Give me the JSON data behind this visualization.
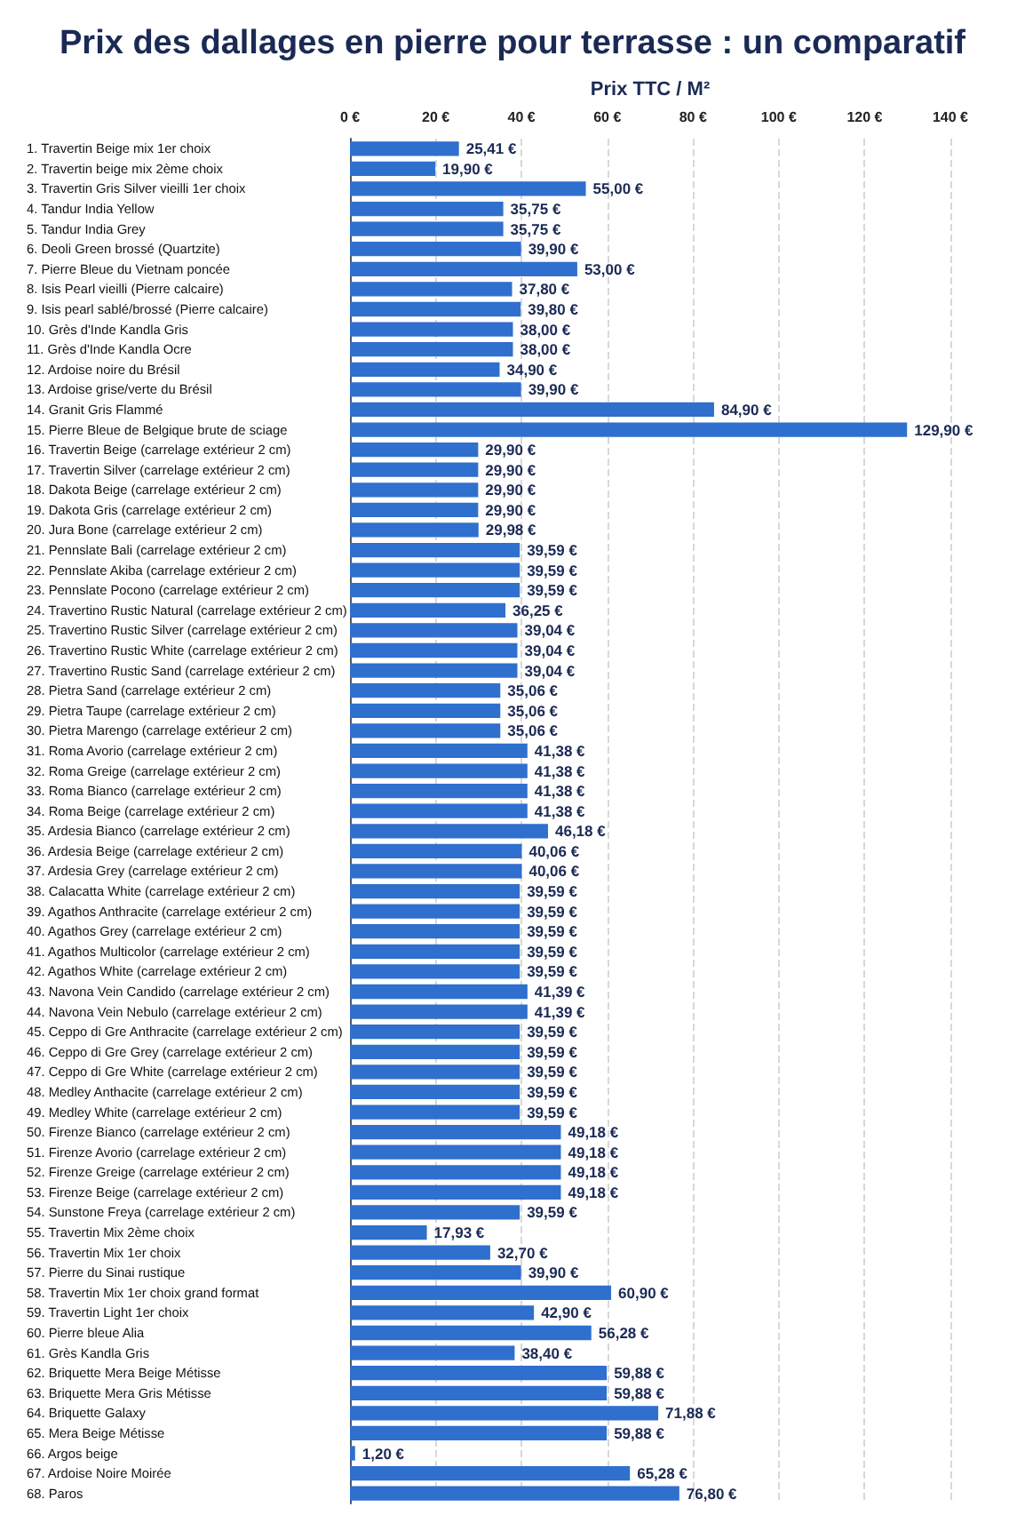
{
  "chart_data": {
    "type": "bar",
    "orientation": "horizontal",
    "title": "Prix des dallages en pierre pour terrasse : un comparatif",
    "xlabel": "Prix TTC / M²",
    "categories": [
      "1. Travertin Beige mix 1er choix",
      "2. Travertin beige mix 2ème choix",
      "3. Travertin Gris Silver vieilli 1er choix",
      "4. Tandur India Yellow",
      "5. Tandur India Grey",
      "6. Deoli Green brossé (Quartzite)",
      "7. Pierre Bleue du Vietnam poncée",
      "8. Isis Pearl vieilli (Pierre calcaire)",
      "9. Isis pearl sablé/brossé (Pierre calcaire)",
      "10. Grès d'Inde Kandla Gris",
      "11. Grès d'Inde Kandla Ocre",
      "12. Ardoise noire du Brésil",
      "13. Ardoise grise/verte du Brésil",
      "14. Granit Gris Flammé",
      "15. Pierre Bleue de Belgique brute de sciage",
      "16. Travertin Beige (carrelage extérieur 2 cm)",
      "17. Travertin Silver (carrelage extérieur 2 cm)",
      "18. Dakota Beige (carrelage extérieur 2 cm)",
      "19. Dakota Gris (carrelage extérieur 2 cm)",
      "20. Jura Bone (carrelage extérieur 2 cm)",
      "21. Pennslate Bali (carrelage extérieur 2 cm)",
      "22. Pennslate Akiba (carrelage extérieur 2 cm)",
      "23. Pennslate Pocono (carrelage extérieur 2 cm)",
      "24. Travertino Rustic Natural (carrelage extérieur 2 cm)",
      "25. Travertino Rustic Silver (carrelage extérieur 2 cm)",
      "26. Travertino Rustic White (carrelage extérieur 2 cm)",
      "27. Travertino Rustic Sand (carrelage extérieur 2 cm)",
      "28. Pietra Sand (carrelage extérieur 2 cm)",
      "29. Pietra Taupe (carrelage extérieur 2 cm)",
      "30. Pietra Marengo (carrelage extérieur 2 cm)",
      "31. Roma Avorio (carrelage extérieur 2 cm)",
      "32. Roma Greige (carrelage extérieur 2 cm)",
      "33. Roma Bianco (carrelage extérieur 2 cm)",
      "34. Roma Beige (carrelage extérieur 2 cm)",
      "35. Ardesia Bianco (carrelage extérieur 2 cm)",
      "36. Ardesia Beige (carrelage extérieur 2 cm)",
      "37. Ardesia Grey (carrelage extérieur 2 cm)",
      "38. Calacatta White (carrelage extérieur 2 cm)",
      "39. Agathos Anthracite (carrelage extérieur 2 cm)",
      "40. Agathos Grey (carrelage extérieur 2 cm)",
      "41. Agathos Multicolor (carrelage extérieur 2 cm)",
      "42. Agathos White (carrelage extérieur 2 cm)",
      "43. Navona Vein Candido (carrelage extérieur 2 cm)",
      "44. Navona Vein Nebulo (carrelage extérieur 2 cm)",
      "45. Ceppo di Gre Anthracite (carrelage extérieur 2 cm)",
      "46. Ceppo di Gre Grey (carrelage extérieur 2 cm)",
      "47. Ceppo di Gre White (carrelage extérieur 2 cm)",
      "48. Medley Anthacite (carrelage extérieur 2 cm)",
      "49. Medley White (carrelage extérieur 2 cm)",
      "50. Firenze Bianco (carrelage extérieur 2 cm)",
      "51. Firenze Avorio (carrelage extérieur 2 cm)",
      "52. Firenze Greige (carrelage extérieur 2 cm)",
      "53. Firenze Beige (carrelage extérieur 2 cm)",
      "54. Sunstone Freya (carrelage extérieur 2 cm)",
      "55. Travertin Mix 2ème choix",
      "56. Travertin Mix 1er choix",
      "57. Pierre du Sinai rustique",
      "58. Travertin Mix 1er choix grand format",
      "59. Travertin Light 1er choix",
      "60. Pierre bleue Alia",
      "61. Grès Kandla Gris",
      "62. Briquette Mera Beige Métisse",
      "63. Briquette Mera Gris Métisse",
      "64. Briquette Galaxy",
      "65. Mera Beige Métisse",
      "66. Argos beige",
      "67. Ardoise Noire Moirée",
      "68. Paros"
    ],
    "values": [
      25.41,
      19.9,
      55,
      35.75,
      35.75,
      39.9,
      53,
      37.8,
      39.8,
      38,
      38,
      34.9,
      39.9,
      84.9,
      129.9,
      29.9,
      29.9,
      29.9,
      29.9,
      29.98,
      39.59,
      39.59,
      39.59,
      36.25,
      39.04,
      39.04,
      39.04,
      35.06,
      35.06,
      35.06,
      41.38,
      41.38,
      41.38,
      41.38,
      46.18,
      40.06,
      40.06,
      39.59,
      39.59,
      39.59,
      39.59,
      39.59,
      41.39,
      41.39,
      39.59,
      39.59,
      39.59,
      39.59,
      39.59,
      49.18,
      49.18,
      49.18,
      49.18,
      39.59,
      17.93,
      32.7,
      39.9,
      60.9,
      42.9,
      56.28,
      38.4,
      59.88,
      59.88,
      71.88,
      59.88,
      1.2,
      65.28,
      76.8
    ],
    "value_labels": [
      "25,41 €",
      "19,90 €",
      "55,00 €",
      "35,75 €",
      "35,75 €",
      "39,90 €",
      "53,00 €",
      "37,80 €",
      "39,80 €",
      "38,00 €",
      "38,00 €",
      "34,90 €",
      "39,90 €",
      "84,90 €",
      "129,90 €",
      "29,90 €",
      "29,90 €",
      "29,90 €",
      "29,90 €",
      "29,98 €",
      "39,59 €",
      "39,59 €",
      "39,59 €",
      "36,25 €",
      "39,04 €",
      "39,04 €",
      "39,04 €",
      "35,06 €",
      "35,06 €",
      "35,06 €",
      "41,38 €",
      "41,38 €",
      "41,38 €",
      "41,38 €",
      "46,18 €",
      "40,06 €",
      "40,06 €",
      "39,59 €",
      "39,59 €",
      "39,59 €",
      "39,59 €",
      "39,59 €",
      "41,39 €",
      "41,39 €",
      "39,59 €",
      "39,59 €",
      "39,59 €",
      "39,59 €",
      "39,59 €",
      "49,18 €",
      "49,18 €",
      "49,18 €",
      "49,18 €",
      "39,59 €",
      "17,93 €",
      "32,70 €",
      "39,90 €",
      "60,90 €",
      "42,90 €",
      "56,28 €",
      "38,40 €",
      "59,88 €",
      "59,88 €",
      "71,88 €",
      "59,88 €",
      "1,20 €",
      "65,28 €",
      "76,80 €"
    ],
    "color": "#2f6fce",
    "xlim": [
      0,
      140
    ],
    "xticks": [
      {
        "value": 0,
        "label": "0 €"
      },
      {
        "value": 20,
        "label": "20 €"
      },
      {
        "value": 40,
        "label": "40 €"
      },
      {
        "value": 60,
        "label": "60 €"
      },
      {
        "value": 80,
        "label": "80 €"
      },
      {
        "value": 100,
        "label": "100 €"
      },
      {
        "value": 120,
        "label": "120 €"
      },
      {
        "value": 140,
        "label": "140 €"
      }
    ],
    "grid": "x"
  }
}
